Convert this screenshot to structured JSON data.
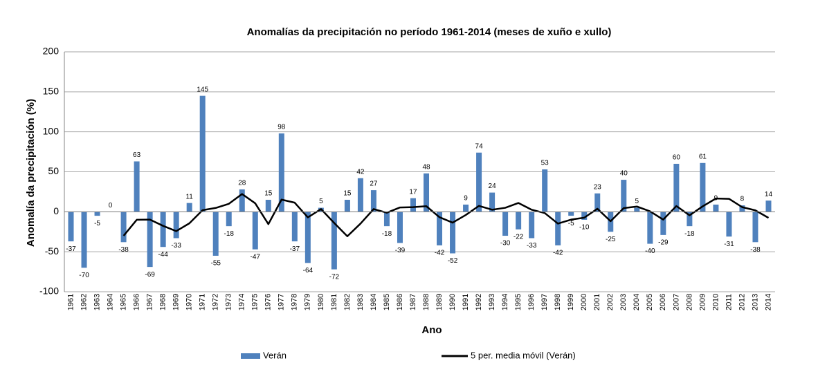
{
  "chart_data": {
    "type": "bar",
    "title": "Anomalías da precipitación no período 1961-2014 (meses de xuño e xullo)",
    "x_label": "Ano",
    "y_label": "Anomalía da precipitación (%)",
    "categories": [
      "1961",
      "1962",
      "1963",
      "1964",
      "1965",
      "1966",
      "1967",
      "1968",
      "1969",
      "1970",
      "1971",
      "1972",
      "1973",
      "1974",
      "1975",
      "1976",
      "1977",
      "1978",
      "1979",
      "1980",
      "1981",
      "1982",
      "1983",
      "1984",
      "1985",
      "1986",
      "1987",
      "1988",
      "1989",
      "1990",
      "1991",
      "1992",
      "1993",
      "1994",
      "1995",
      "1996",
      "1997",
      "1998",
      "1999",
      "2000",
      "2001",
      "2002",
      "2003",
      "2004",
      "2005",
      "2006",
      "2007",
      "2008",
      "2009",
      "2010",
      "2011",
      "2012",
      "2013",
      "2014"
    ],
    "series": [
      {
        "name": "Verán",
        "color": "#4f81bd",
        "values": [
          -37,
          -70,
          -5,
          0,
          -38,
          63,
          -69,
          -44,
          -33,
          11,
          145,
          -55,
          -18,
          28,
          -47,
          15,
          98,
          -37,
          -64,
          5,
          -72,
          15,
          42,
          27,
          -18,
          -39,
          17,
          48,
          -42,
          -52,
          9,
          74,
          24,
          -30,
          -22,
          -33,
          53,
          -42,
          -5,
          -10,
          23,
          -25,
          40,
          5,
          -40,
          -29,
          60,
          -18,
          61,
          9,
          -31,
          8,
          -38,
          14
        ]
      },
      {
        "name": "5 per. media móvil (Verán)",
        "color": "#000000",
        "type": "line",
        "values": [
          null,
          null,
          null,
          null,
          -30,
          -10,
          -9.8,
          -17.6,
          -24.2,
          -14.4,
          2,
          4.8,
          10,
          22.2,
          10.6,
          -15.4,
          15.2,
          11.4,
          -7,
          3.4,
          -14,
          -30.6,
          -14.8,
          3.4,
          -1.2,
          5.4,
          5.8,
          7,
          -6.8,
          -13.6,
          -4,
          7.4,
          2.6,
          5,
          11,
          2.6,
          -1.6,
          -14.8,
          -9.8,
          -7.4,
          3.8,
          -11.8,
          4.6,
          6.6,
          0.6,
          -9.8,
          7.2,
          -4.4,
          6.8,
          16.6,
          16.2,
          5.8,
          1.8,
          -7.6
        ]
      }
    ],
    "ylim": [
      -100,
      200
    ],
    "yticks": [
      -100,
      -50,
      0,
      50,
      100,
      150,
      200
    ],
    "grid": true
  }
}
